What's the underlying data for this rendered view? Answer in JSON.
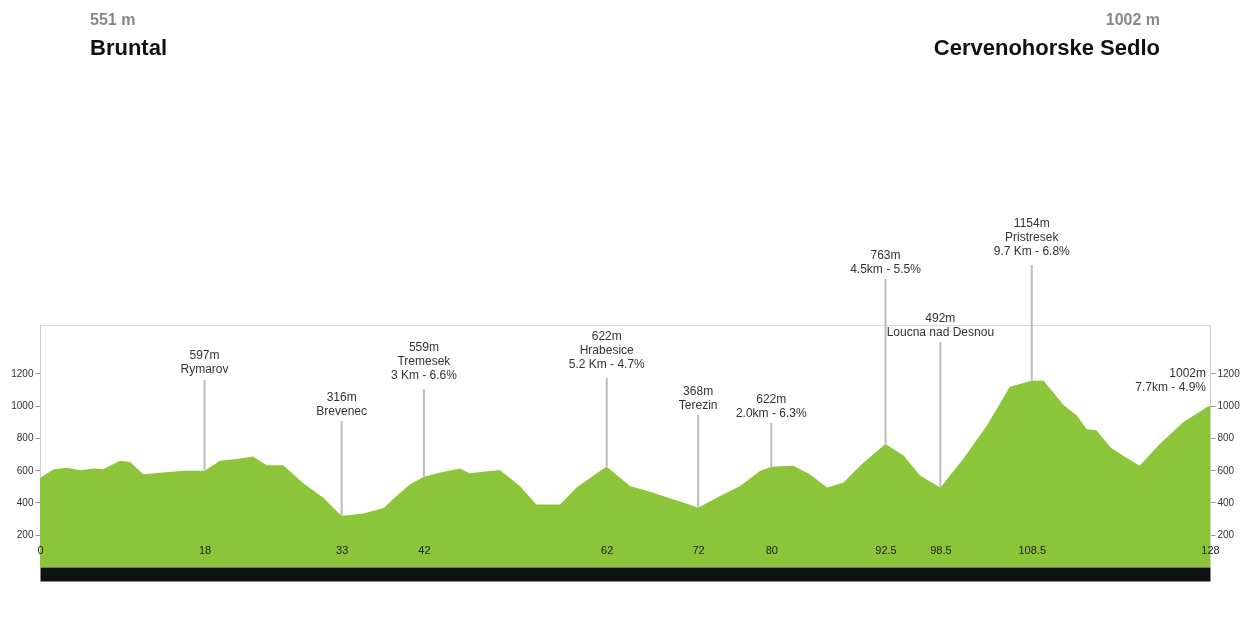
{
  "chart_data": {
    "type": "area",
    "x": [
      0,
      1.5,
      2.9,
      4.4,
      5.8,
      6.9,
      8.75,
      9.85,
      11.3,
      13.5,
      15.7,
      18,
      19.7,
      21.5,
      23.3,
      24.8,
      26.6,
      28.8,
      31,
      33,
      35.4,
      37.6,
      39,
      40.5,
      42,
      43.8,
      45.95,
      47,
      50.3,
      52.5,
      54.3,
      56.9,
      58.7,
      61.3,
      62,
      64.55,
      67.1,
      69.3,
      70.7,
      72,
      74.4,
      76.6,
      78.8,
      80,
      82.4,
      84.2,
      86.1,
      87.9,
      90.1,
      92.5,
      94.5,
      96.3,
      98.5,
      101,
      103.6,
      106.1,
      108.5,
      109.8,
      112,
      113.4,
      114.5,
      115.6,
      117.1,
      118.5,
      120.3,
      122.5,
      125.1,
      128
    ],
    "series": [
      {
        "color": "#8cc43a",
        "values": [
          551,
          606,
          615,
          600,
          610,
          606,
          658,
          651,
          575,
          585,
          596,
          597,
          658,
          669,
          685,
          631,
          631,
          519,
          429,
          316,
          331,
          366,
          440,
          513,
          559,
          585,
          610,
          581,
          602,
          502,
          387,
          387,
          492,
          596,
          622,
          502,
          460,
          419,
          394,
          368,
          440,
          502,
          596,
          622,
          627,
          575,
          492,
          523,
          648,
          763,
          690,
          565,
          492,
          669,
          877,
          1117,
          1154,
          1154,
          1002,
          940,
          856,
          846,
          742,
          690,
          627,
          763,
          898,
          1002
        ]
      }
    ],
    "xlim": [
      0,
      128
    ],
    "xticks": [
      0,
      18,
      33,
      42,
      62,
      72,
      80,
      92.5,
      98.5,
      108.5,
      128
    ],
    "ylim": [
      0,
      1500
    ],
    "yticks": [
      200,
      400,
      600,
      800,
      1000,
      1200
    ],
    "y2lim": [
      0,
      1500
    ],
    "y2ticks": [
      200,
      400,
      600,
      800,
      1000,
      1200
    ],
    "grid": false,
    "annotations": [
      "551 m",
      "Bruntal",
      "1002 m",
      "Cervenohorske Sedlo",
      {
        "text": "597m\nRymarov",
        "x": 18,
        "y": 597
      },
      {
        "text": "316m\nBrevenec",
        "x": 33,
        "y": 316
      },
      {
        "text": "559m\nTremesek\n3 Km - 6.6%",
        "x": 42,
        "y": 559
      },
      {
        "text": "622m\nHrabesice\n5.2 Km - 4.7%",
        "x": 62,
        "y": 622
      },
      {
        "text": "368m\nTerezin",
        "x": 72,
        "y": 368
      },
      {
        "text": "622m\n2.0km - 6.3%",
        "x": 80,
        "y": 622
      },
      {
        "text": "763m\n4.5km - 5.5%",
        "x": 92.5,
        "y": 763
      },
      {
        "text": "492m\nLoucna nad Desnou",
        "x": 98.5,
        "y": 492
      },
      {
        "text": "1154m\nPristresek\n9.7 Km - 6.8%",
        "x": 108.5,
        "y": 1154
      },
      {
        "text": "1002m\n7.7km - 4.9%",
        "x": 128,
        "y": 1002
      }
    ]
  }
}
